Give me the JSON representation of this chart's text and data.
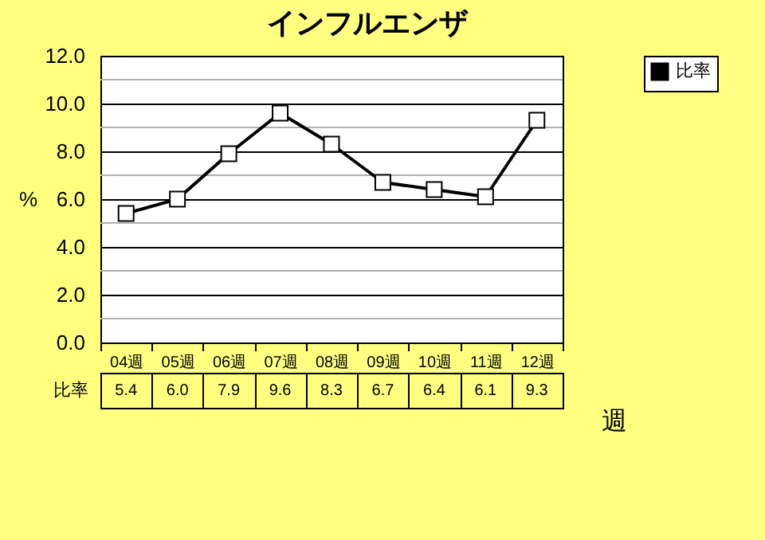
{
  "chart_data": {
    "type": "line",
    "title": "インフルエンザ",
    "xlabel": "週",
    "ylabel": "%",
    "categories": [
      "04週",
      "05週",
      "06週",
      "07週",
      "08週",
      "09週",
      "10週",
      "11週",
      "12週"
    ],
    "series": [
      {
        "name": "比率",
        "color": "#000000",
        "values": [
          5.4,
          6.0,
          7.9,
          9.6,
          8.3,
          6.7,
          6.4,
          6.1,
          9.3
        ],
        "value_labels": [
          "5.4",
          "6.0",
          "7.9",
          "9.6",
          "8.3",
          "6.7",
          "6.4",
          "6.1",
          "9.3"
        ]
      }
    ],
    "ylim": [
      0,
      12
    ],
    "yticks": [
      {
        "value": 0,
        "label": "0.0"
      },
      {
        "value": 2,
        "label": "2.0"
      },
      {
        "value": 4,
        "label": "4.0"
      },
      {
        "value": 6,
        "label": "6.0"
      },
      {
        "value": 8,
        "label": "8.0"
      },
      {
        "value": 10,
        "label": "10.0"
      },
      {
        "value": 12,
        "label": "12.0"
      }
    ],
    "grid": true,
    "legend": "top right",
    "marker": "square",
    "line_style": "solid"
  }
}
